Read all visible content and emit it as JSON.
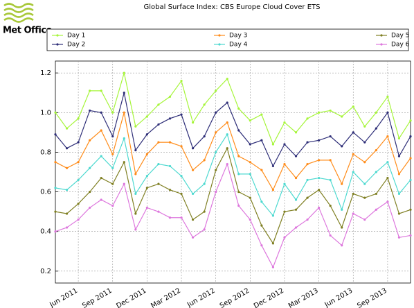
{
  "logo": "Met Office",
  "chart_data": {
    "type": "line",
    "title": "Global Surface Index: CBS Europe Cloud Cover ETS",
    "categories": [
      null,
      null,
      "Jun 2011",
      null,
      null,
      "Sep 2011",
      null,
      null,
      "Dec 2011",
      null,
      null,
      "Mar 2012",
      null,
      null,
      "Jun 2012",
      null,
      null,
      "Sep 2012",
      null,
      null,
      "Dec 2012",
      null,
      null,
      "Mar 2013",
      null,
      null,
      "Jun 2013",
      null,
      null,
      "Sep 2013",
      null,
      null
    ],
    "series": [
      {
        "name": "Day 1",
        "color": "#a6f53a",
        "values": [
          1.0,
          0.92,
          0.97,
          1.11,
          1.11,
          1.0,
          1.2,
          0.93,
          0.98,
          1.04,
          1.08,
          1.16,
          0.95,
          1.04,
          1.11,
          1.17,
          1.02,
          0.96,
          0.99,
          0.84,
          0.95,
          0.9,
          0.97,
          1.0,
          1.01,
          0.98,
          1.03,
          0.93,
          1.0,
          1.08,
          0.87,
          0.96
        ]
      },
      {
        "name": "Day 2",
        "color": "#2e2e78",
        "values": [
          0.89,
          0.82,
          0.85,
          1.01,
          1.0,
          0.88,
          1.1,
          0.81,
          0.89,
          0.94,
          0.97,
          0.99,
          0.82,
          0.88,
          1.0,
          1.05,
          0.91,
          0.84,
          0.86,
          0.73,
          0.84,
          0.78,
          0.85,
          0.86,
          0.88,
          0.83,
          0.9,
          0.85,
          0.92,
          1.0,
          0.78,
          0.88
        ]
      },
      {
        "name": "Day 3",
        "color": "#ff8c1a",
        "values": [
          0.75,
          0.72,
          0.75,
          0.86,
          0.91,
          0.79,
          1.0,
          0.69,
          0.79,
          0.85,
          0.85,
          0.83,
          0.71,
          0.76,
          0.9,
          0.95,
          0.78,
          0.75,
          0.71,
          0.61,
          0.74,
          0.67,
          0.74,
          0.76,
          0.76,
          0.64,
          0.79,
          0.75,
          0.81,
          0.88,
          0.69,
          0.77
        ]
      },
      {
        "name": "Day 4",
        "color": "#4dd9d0",
        "values": [
          0.62,
          0.61,
          0.66,
          0.72,
          0.78,
          0.72,
          0.87,
          0.59,
          0.68,
          0.74,
          0.73,
          0.68,
          0.59,
          0.64,
          0.8,
          0.89,
          0.69,
          0.69,
          0.55,
          0.48,
          0.64,
          0.56,
          0.66,
          0.67,
          0.66,
          0.51,
          0.7,
          0.64,
          0.7,
          0.75,
          0.59,
          0.66
        ]
      },
      {
        "name": "Day 5",
        "color": "#7f7f22",
        "values": [
          0.5,
          0.49,
          0.54,
          0.6,
          0.67,
          0.64,
          0.75,
          0.49,
          0.62,
          0.64,
          0.61,
          0.59,
          0.46,
          0.5,
          0.71,
          0.82,
          0.6,
          0.57,
          0.43,
          0.34,
          0.5,
          0.51,
          0.57,
          0.61,
          0.53,
          0.42,
          0.59,
          0.57,
          0.59,
          0.67,
          0.49,
          0.51
        ]
      },
      {
        "name": "Day 6",
        "color": "#dd77dd",
        "values": [
          0.4,
          0.42,
          0.46,
          0.52,
          0.56,
          0.53,
          0.64,
          0.41,
          0.52,
          0.5,
          0.47,
          0.47,
          0.37,
          0.41,
          0.6,
          0.74,
          0.53,
          0.46,
          0.33,
          0.22,
          0.37,
          0.42,
          0.46,
          0.52,
          0.38,
          0.33,
          0.49,
          0.46,
          0.51,
          0.55,
          0.37,
          0.38
        ]
      }
    ],
    "ylim": [
      0.14,
      1.26
    ],
    "yticks": [
      0.2,
      0.4,
      0.6,
      0.8,
      {
        "value": 1,
        "label": "1.0"
      },
      1.2
    ],
    "grid": true
  }
}
